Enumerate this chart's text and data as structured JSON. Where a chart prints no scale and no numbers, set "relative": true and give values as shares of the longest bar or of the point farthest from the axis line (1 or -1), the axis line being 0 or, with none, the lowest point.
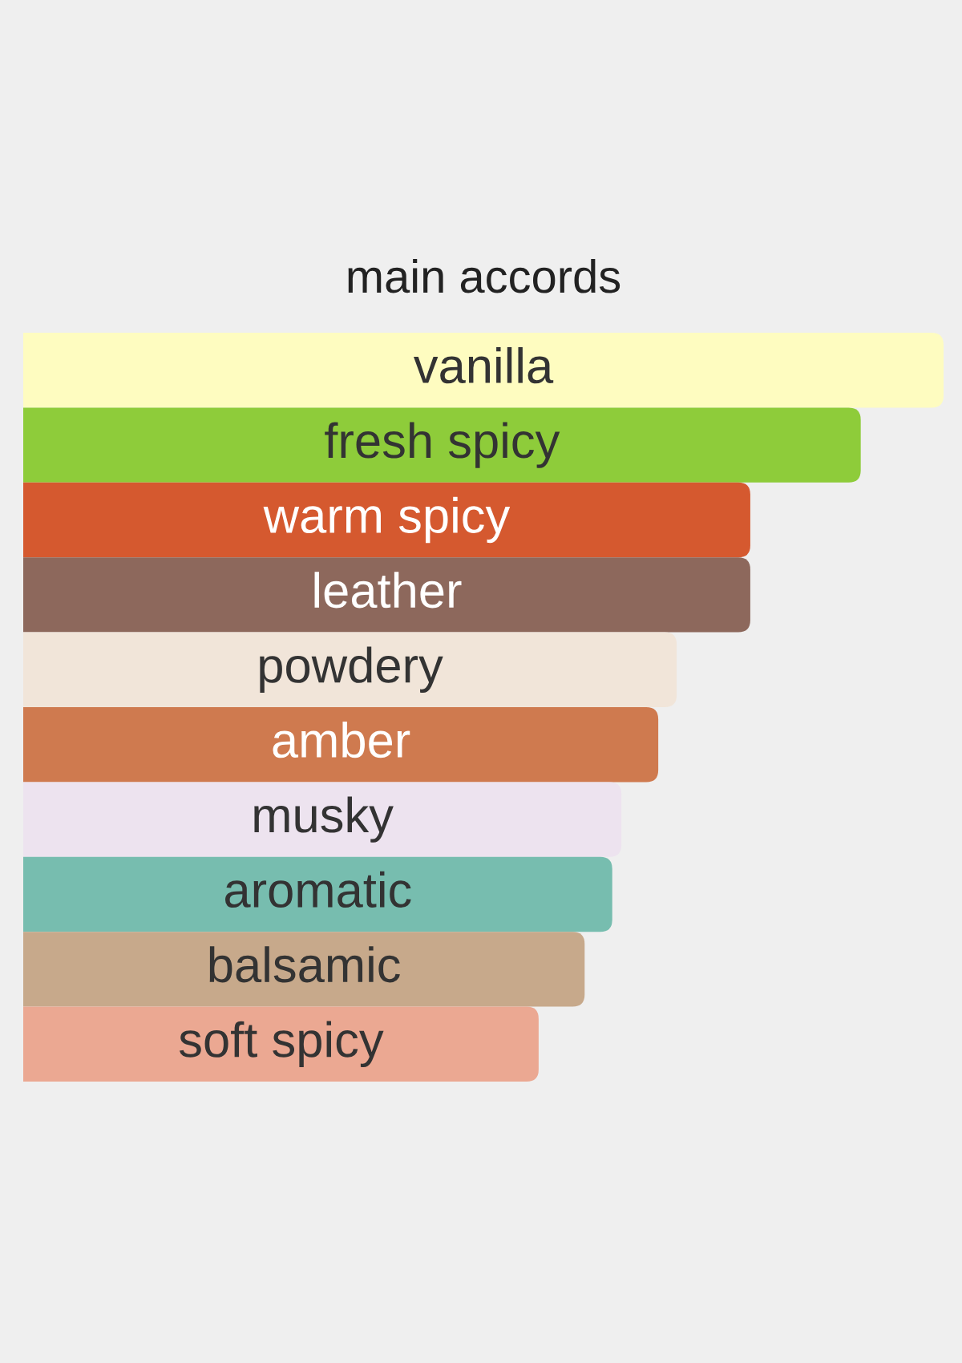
{
  "chart_data": {
    "type": "bar",
    "orientation": "horizontal",
    "relative": true,
    "title": "main accords",
    "categories": [
      "vanilla",
      "fresh spicy",
      "warm spicy",
      "leather",
      "powdery",
      "amber",
      "musky",
      "aromatic",
      "balsamic",
      "soft spicy"
    ],
    "values": [
      1,
      0.91,
      0.79,
      0.79,
      0.71,
      0.69,
      0.65,
      0.64,
      0.61,
      0.56
    ],
    "colors": [
      "#fefcc0",
      "#8ecc3a",
      "#d5592f",
      "#8d685c",
      "#f1e5d9",
      "#cf7a4f",
      "#ede3ef",
      "#77bdaf",
      "#c7a98b",
      "#eba892"
    ]
  }
}
